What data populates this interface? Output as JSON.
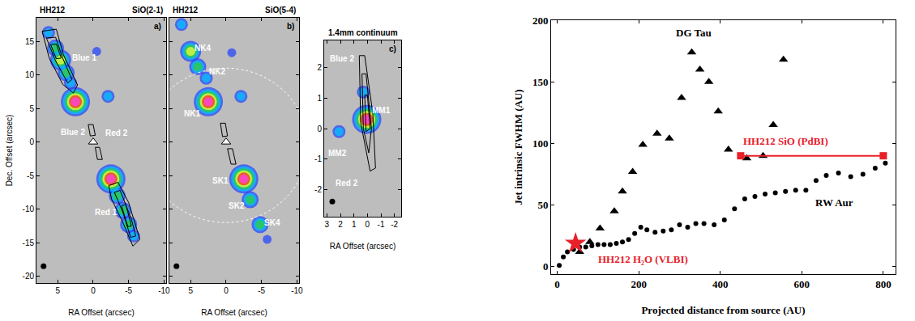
{
  "chart_data": [
    {
      "type": "image",
      "title": "HH212",
      "title_right": "SiO(2-1)",
      "panel_label": "a)",
      "xlabel": "RA Offset (arcsec)",
      "ylabel": "Dec. Offset (arcsec)",
      "xlim": [
        8,
        -10.3
      ],
      "ylim": [
        -21,
        18.5
      ],
      "xticks": [
        5,
        0,
        -5,
        -10
      ],
      "yticks": [
        -20,
        -15,
        -10,
        -5,
        0,
        5,
        10,
        15
      ],
      "knots": [
        {
          "x": 6.3,
          "y": 16.3,
          "level": 2
        },
        {
          "x": 5.3,
          "y": 14,
          "level": 3
        },
        {
          "x": 4.6,
          "y": 12.2,
          "level": 4
        },
        {
          "x": 3.8,
          "y": 10.3,
          "level": 3
        },
        {
          "x": 3.2,
          "y": 8.8,
          "level": 2
        },
        {
          "x": 2.5,
          "y": 6,
          "level": 6
        },
        {
          "x": -0.5,
          "y": 13.5,
          "level": 1
        },
        {
          "x": -2.1,
          "y": 6.8,
          "level": 2
        },
        {
          "x": -2.5,
          "y": -5.5,
          "level": 6
        },
        {
          "x": -3.4,
          "y": -8,
          "level": 3
        },
        {
          "x": -4.2,
          "y": -10.2,
          "level": 3
        },
        {
          "x": -5,
          "y": -12.3,
          "level": 3
        },
        {
          "x": -5.7,
          "y": -14,
          "level": 2
        }
      ],
      "contours": [
        [
          [
            7.2,
            16.5
          ],
          [
            5.2,
            16.8
          ],
          [
            4.2,
            13
          ],
          [
            2.2,
            8.5
          ],
          [
            2.8,
            7.3
          ],
          [
            4.3,
            8.6
          ],
          [
            6.2,
            12.5
          ]
        ],
        [
          [
            6.6,
            15.5
          ],
          [
            5.3,
            15.6
          ],
          [
            4.3,
            12.5
          ],
          [
            3,
            9.3
          ],
          [
            3.6,
            8.8
          ],
          [
            5.4,
            12.3
          ]
        ],
        [
          [
            6,
            14.5
          ],
          [
            5.2,
            14.6
          ],
          [
            4.5,
            12.5
          ],
          [
            5.2,
            12.4
          ]
        ],
        [
          [
            -2.2,
            -6.5
          ],
          [
            -3.5,
            -6
          ],
          [
            -5,
            -9
          ],
          [
            -6.6,
            -14.5
          ],
          [
            -5.6,
            -15.5
          ],
          [
            -4.2,
            -12
          ],
          [
            -2.6,
            -8.5
          ]
        ],
        [
          [
            -3,
            -7.5
          ],
          [
            -3.8,
            -7.2
          ],
          [
            -5.4,
            -11.5
          ],
          [
            -6,
            -14
          ],
          [
            -5.3,
            -14.2
          ],
          [
            -4.2,
            -10.5
          ]
        ],
        [
          [
            -4,
            -9.5
          ],
          [
            -4.6,
            -9.3
          ],
          [
            -5.4,
            -12.5
          ],
          [
            -4.9,
            -12.6
          ]
        ],
        [
          [
            0.7,
            2.6
          ],
          [
            0,
            2.6
          ],
          [
            -0.3,
            1
          ],
          [
            0.4,
            0.9
          ]
        ],
        [
          [
            -0.3,
            -0.8
          ],
          [
            -0.9,
            -0.8
          ],
          [
            -1.3,
            -2.6
          ],
          [
            -0.6,
            -2.6
          ]
        ]
      ],
      "labels": [
        {
          "text": "Blue 1",
          "x": 1.2,
          "y": 12.5
        },
        {
          "text": "Blue 2",
          "x": 2.8,
          "y": 1.5
        },
        {
          "text": "Red 2",
          "x": -3.3,
          "y": 1.3
        },
        {
          "text": "Red 1",
          "x": -1.8,
          "y": -10.5
        }
      ],
      "source": [
        0,
        0
      ],
      "marker": "triangle-up",
      "beam": [
        7,
        -18.5
      ]
    },
    {
      "type": "image",
      "title": "HH212",
      "title_right": "SiO(5-4)",
      "panel_label": "b)",
      "xlabel": "RA Offset (arcsec)",
      "tick_labels": "x",
      "xlim": [
        8,
        -10.3
      ],
      "ylim": [
        -21,
        18.5
      ],
      "xticks": [
        5,
        0,
        -5,
        -10
      ],
      "yticks": [
        -20,
        -15,
        -10,
        -5,
        0,
        5,
        10,
        15
      ],
      "knots": [
        {
          "x": 6.3,
          "y": 17.5,
          "level": 2
        },
        {
          "x": 5,
          "y": 13.5,
          "level": 4
        },
        {
          "x": 4,
          "y": 11.2,
          "level": 3
        },
        {
          "x": 2.8,
          "y": 9.5,
          "level": 2
        },
        {
          "x": 2.5,
          "y": 6,
          "level": 6
        },
        {
          "x": -0.8,
          "y": 13.3,
          "level": 1
        },
        {
          "x": -2.1,
          "y": 6.8,
          "level": 2
        },
        {
          "x": -2.5,
          "y": -5.5,
          "level": 6
        },
        {
          "x": -3.4,
          "y": -8.6,
          "level": 3
        },
        {
          "x": -4.8,
          "y": -12.3,
          "level": 3
        },
        {
          "x": -5.8,
          "y": -14.5,
          "level": 1
        }
      ],
      "contours": [
        [
          [
            0.8,
            2.8
          ],
          [
            0.1,
            2.8
          ],
          [
            -0.2,
            0.9
          ],
          [
            0.5,
            0.8
          ]
        ],
        [
          [
            -0.2,
            -1
          ],
          [
            -0.9,
            -1
          ],
          [
            -1.4,
            -3.3
          ],
          [
            -0.7,
            -3.3
          ]
        ]
      ],
      "labels": [
        {
          "text": "NK4",
          "x": 3.3,
          "y": 14
        },
        {
          "text": "NK2",
          "x": 1.2,
          "y": 10.5
        },
        {
          "text": "NK1",
          "x": 4.8,
          "y": 4.2
        },
        {
          "text": "SK1",
          "x": 0.8,
          "y": -5.8
        },
        {
          "text": "SK2",
          "x": -1.5,
          "y": -9.5
        },
        {
          "text": "SK4",
          "x": -6.5,
          "y": -12
        }
      ],
      "field_circle": {
        "x": 0,
        "y": -0.5,
        "r": 11.5
      },
      "source": [
        0,
        0
      ],
      "marker": "triangle-up",
      "beam": [
        7,
        -18.5
      ]
    },
    {
      "type": "image",
      "title": "1.4mm continuum",
      "panel_label": "c)",
      "xlabel": "RA Offset (arcsec)",
      "xlim": [
        3.2,
        -2.5
      ],
      "ylim": [
        -2.9,
        2.9
      ],
      "xticks": [
        3,
        2,
        1,
        0,
        -1,
        -2
      ],
      "yticks": [
        -2,
        -1,
        0,
        1,
        2
      ],
      "knots": [
        {
          "x": 0.05,
          "y": 0.3,
          "level": 6
        },
        {
          "x": 0.3,
          "y": 1.2,
          "level": 2
        },
        {
          "x": 2.1,
          "y": -0.1,
          "level": 2
        }
      ],
      "contours": [
        [
          [
            0.6,
            2.4
          ],
          [
            0.2,
            2.4
          ],
          [
            -0.4,
            0.5
          ],
          [
            -0.6,
            -1.3
          ],
          [
            -0.2,
            -1.4
          ],
          [
            0.5,
            0.2
          ]
        ],
        [
          [
            0.4,
            1.8
          ],
          [
            0.1,
            1.8
          ],
          [
            -0.3,
            0
          ],
          [
            -0.1,
            -0.8
          ],
          [
            0.3,
            0
          ]
        ],
        [
          [
            0.2,
            1.1
          ],
          [
            0,
            1.1
          ],
          [
            -0.2,
            0
          ],
          [
            0.1,
            -0.1
          ]
        ]
      ],
      "labels": [
        {
          "text": "Blue 2",
          "x": 1.9,
          "y": 2.3
        },
        {
          "text": "MM2",
          "x": 2.2,
          "y": -0.8
        },
        {
          "text": "Red 2",
          "x": 1.5,
          "y": -1.8
        },
        {
          "text": "MM1",
          "x": -1,
          "y": 0.6
        }
      ],
      "beam": [
        2.6,
        -2.4
      ]
    },
    {
      "type": "scatter",
      "xlabel": "Projected distance from source (AU)",
      "ylabel": "Jet intrinsic FWHM (AU)",
      "xlim": [
        -15,
        830
      ],
      "ylim": [
        -6,
        200
      ],
      "xticks": [
        0,
        200,
        400,
        600,
        800
      ],
      "yticks": [
        0,
        50,
        100,
        150,
        200
      ],
      "series": [
        {
          "name": "DG Tau",
          "color": "#000000",
          "marker": "triangle-up",
          "label_at": [
            335,
            190
          ],
          "x": [
            55,
            80,
            105,
            140,
            160,
            185,
            210,
            245,
            275,
            305,
            330,
            350,
            372,
            395,
            420,
            465,
            505,
            530,
            555
          ],
          "values": [
            12,
            20,
            31,
            45,
            61,
            77,
            99,
            108,
            104,
            137,
            174,
            160,
            150,
            126,
            95,
            88,
            90,
            115,
            168
          ]
        },
        {
          "name": "RW Aur",
          "color": "#000000",
          "marker": "circle",
          "label_at": [
            680,
            52
          ],
          "x": [
            5,
            15,
            25,
            40,
            55,
            70,
            85,
            100,
            115,
            130,
            145,
            160,
            175,
            190,
            205,
            220,
            240,
            260,
            280,
            300,
            320,
            340,
            360,
            385,
            410,
            435,
            460,
            485,
            510,
            535,
            560,
            585,
            610,
            635,
            660,
            690,
            720,
            750,
            780,
            805
          ],
          "values": [
            1,
            8,
            12,
            14,
            16,
            16,
            17,
            18,
            18,
            18,
            19,
            20,
            22,
            27,
            32,
            30,
            28,
            29,
            30,
            34,
            32,
            35,
            35,
            34,
            38,
            47,
            55,
            57,
            59,
            60,
            61,
            62,
            62,
            70,
            74,
            76,
            73,
            75,
            80,
            84
          ]
        },
        {
          "name": "HH212 SiO (PdBI)",
          "color": "#e8202a",
          "marker": "square",
          "line_style": "solid",
          "label_at": [
            560,
            102
          ],
          "x": [
            450,
            800
          ],
          "values": [
            90,
            90
          ]
        },
        {
          "name": "HH212 H₂O (VLBI)",
          "color": "#e8202a",
          "marker": "star",
          "label_at": [
            210,
            6
          ],
          "x": [
            45
          ],
          "values": [
            19
          ]
        }
      ]
    }
  ]
}
